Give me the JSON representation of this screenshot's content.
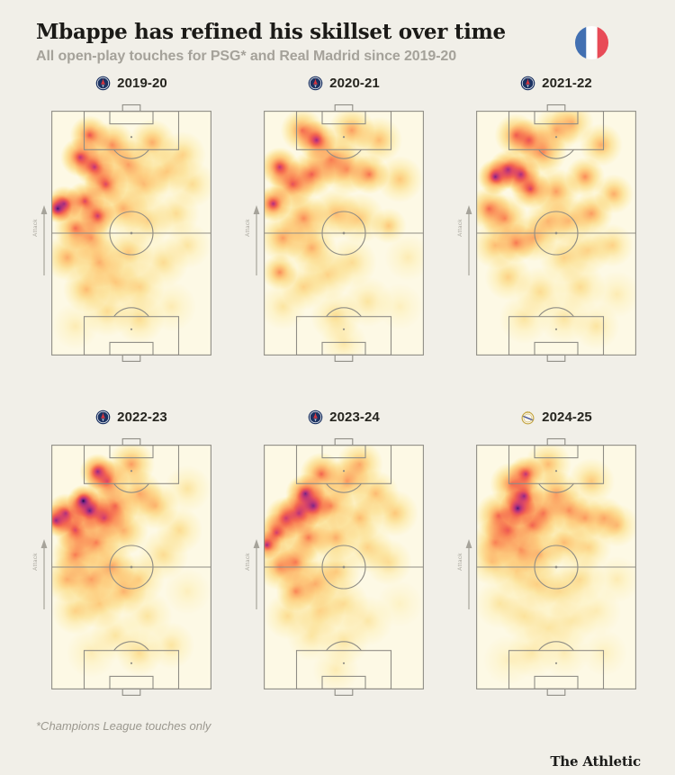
{
  "header": {
    "title": "Mbappe has refined his skillset over time",
    "subtitle": "All open-play touches for PSG* and Real Madrid since 2019-20"
  },
  "footer": {
    "note": "*Champions League touches only",
    "brand": "The Athletic"
  },
  "pitch": {
    "attack_label": "Attack",
    "attack_direction": "up"
  },
  "theme": {
    "page_bg": "#f1efe8",
    "pitch_bg": "#fdf9e4",
    "line": "#8f8d85",
    "title": "#1b1a17",
    "subtitle": "#a5a29a",
    "muted": "#9b988f",
    "psg_navy": "#1b3262",
    "psg_red": "#d8363f",
    "rm_gold": "#c2a23c",
    "rm_white": "#faf6ea",
    "rm_blue": "#3b4da0",
    "flag_blue": "#4270b2",
    "flag_red": "#e84b57"
  },
  "colormap": [
    [
      0.0,
      253,
      249,
      229
    ],
    [
      0.09,
      253,
      243,
      201
    ],
    [
      0.2,
      252,
      229,
      161
    ],
    [
      0.32,
      253,
      206,
      129
    ],
    [
      0.44,
      252,
      176,
      108
    ],
    [
      0.55,
      250,
      140,
      89
    ],
    [
      0.65,
      242,
      100,
      80
    ],
    [
      0.74,
      221,
      72,
      101
    ],
    [
      0.83,
      182,
      52,
      121
    ],
    [
      0.9,
      133,
      40,
      130
    ],
    [
      0.95,
      83,
      27,
      111
    ],
    [
      0.98,
      43,
      15,
      76
    ],
    [
      1.0,
      17,
      8,
      38
    ]
  ],
  "chart_data": {
    "type": "heatmap",
    "title": "Mbappe has refined his skillset over time",
    "subtitle": "All open-play touches for PSG* and Real Madrid since 2019-20",
    "note": "*Champions League touches only",
    "layout": {
      "rows": 2,
      "cols": 3,
      "attack_direction": "up",
      "grid": false
    },
    "units": {
      "x": "% of pitch width from left touchline",
      "y": "% of pitch length from attacking goal line",
      "v": "relative touch density 0-1",
      "r": "kernel radius px"
    },
    "panels": [
      {
        "season": "2019-20",
        "club": "PSG",
        "points": [
          [
            24,
            10,
            0.7,
            22
          ],
          [
            18,
            19,
            0.8,
            22
          ],
          [
            27,
            23,
            0.8,
            22
          ],
          [
            34,
            30,
            0.75,
            24
          ],
          [
            4,
            40,
            0.95,
            16
          ],
          [
            8,
            38,
            0.8,
            20
          ],
          [
            21,
            37,
            0.75,
            22
          ],
          [
            29,
            43,
            0.8,
            20
          ],
          [
            15,
            48,
            0.6,
            24
          ],
          [
            25,
            52,
            0.5,
            26
          ],
          [
            38,
            14,
            0.55,
            26
          ],
          [
            48,
            22,
            0.5,
            28
          ],
          [
            63,
            13,
            0.45,
            26
          ],
          [
            58,
            30,
            0.4,
            28
          ],
          [
            72,
            25,
            0.35,
            26
          ],
          [
            82,
            18,
            0.3,
            26
          ],
          [
            45,
            40,
            0.45,
            28
          ],
          [
            60,
            45,
            0.3,
            28
          ],
          [
            78,
            42,
            0.25,
            26
          ],
          [
            10,
            60,
            0.45,
            26
          ],
          [
            30,
            62,
            0.45,
            28
          ],
          [
            48,
            58,
            0.35,
            28
          ],
          [
            22,
            73,
            0.4,
            26
          ],
          [
            40,
            70,
            0.35,
            26
          ],
          [
            55,
            72,
            0.3,
            28
          ],
          [
            35,
            82,
            0.25,
            28
          ],
          [
            55,
            85,
            0.25,
            28
          ],
          [
            70,
            62,
            0.25,
            28
          ],
          [
            75,
            80,
            0.15,
            28
          ],
          [
            15,
            88,
            0.15,
            26
          ],
          [
            85,
            55,
            0.2,
            26
          ],
          [
            88,
            30,
            0.25,
            26
          ]
        ]
      },
      {
        "season": "2020-21",
        "club": "PSG",
        "points": [
          [
            33,
            12,
            0.85,
            22
          ],
          [
            24,
            8,
            0.6,
            24
          ],
          [
            10,
            23,
            0.8,
            22
          ],
          [
            6,
            38,
            0.85,
            20
          ],
          [
            18,
            30,
            0.7,
            26
          ],
          [
            30,
            26,
            0.65,
            26
          ],
          [
            42,
            20,
            0.55,
            28
          ],
          [
            52,
            24,
            0.5,
            28
          ],
          [
            66,
            26,
            0.6,
            22
          ],
          [
            55,
            8,
            0.5,
            26
          ],
          [
            72,
            12,
            0.4,
            26
          ],
          [
            85,
            28,
            0.35,
            26
          ],
          [
            25,
            44,
            0.55,
            28
          ],
          [
            12,
            52,
            0.5,
            26
          ],
          [
            10,
            66,
            0.55,
            20
          ],
          [
            30,
            56,
            0.45,
            28
          ],
          [
            45,
            42,
            0.4,
            28
          ],
          [
            60,
            44,
            0.35,
            28
          ],
          [
            78,
            47,
            0.35,
            20
          ],
          [
            40,
            67,
            0.3,
            28
          ],
          [
            55,
            62,
            0.25,
            28
          ],
          [
            25,
            72,
            0.3,
            26
          ],
          [
            45,
            84,
            0.25,
            28
          ],
          [
            65,
            78,
            0.2,
            28
          ],
          [
            12,
            80,
            0.2,
            26
          ],
          [
            85,
            80,
            0.12,
            26
          ],
          [
            50,
            95,
            0.18,
            26
          ],
          [
            90,
            60,
            0.15,
            26
          ]
        ]
      },
      {
        "season": "2021-22",
        "club": "PSG",
        "points": [
          [
            12,
            27,
            0.9,
            20
          ],
          [
            20,
            24,
            0.8,
            22
          ],
          [
            28,
            26,
            0.8,
            22
          ],
          [
            34,
            32,
            0.75,
            22
          ],
          [
            25,
            10,
            0.6,
            24
          ],
          [
            33,
            12,
            0.6,
            24
          ],
          [
            42,
            17,
            0.55,
            26
          ],
          [
            8,
            40,
            0.6,
            24
          ],
          [
            18,
            44,
            0.55,
            26
          ],
          [
            50,
            33,
            0.5,
            26
          ],
          [
            68,
            27,
            0.55,
            22
          ],
          [
            78,
            14,
            0.45,
            24
          ],
          [
            86,
            34,
            0.45,
            22
          ],
          [
            72,
            42,
            0.5,
            24
          ],
          [
            58,
            45,
            0.4,
            26
          ],
          [
            45,
            45,
            0.4,
            26
          ],
          [
            25,
            54,
            0.55,
            22
          ],
          [
            36,
            52,
            0.45,
            26
          ],
          [
            12,
            55,
            0.4,
            26
          ],
          [
            55,
            60,
            0.3,
            28
          ],
          [
            70,
            57,
            0.3,
            26
          ],
          [
            85,
            55,
            0.3,
            24
          ],
          [
            20,
            68,
            0.3,
            26
          ],
          [
            40,
            74,
            0.25,
            28
          ],
          [
            65,
            72,
            0.25,
            28
          ],
          [
            30,
            85,
            0.2,
            28
          ],
          [
            55,
            85,
            0.2,
            28
          ],
          [
            75,
            88,
            0.2,
            26
          ],
          [
            88,
            75,
            0.15,
            26
          ],
          [
            50,
            8,
            0.45,
            26
          ],
          [
            60,
            5,
            0.4,
            24
          ]
        ]
      },
      {
        "season": "2022-23",
        "club": "PSG",
        "points": [
          [
            20,
            23,
            1.0,
            18
          ],
          [
            24,
            27,
            0.9,
            22
          ],
          [
            29,
            11,
            0.85,
            20
          ],
          [
            35,
            15,
            0.7,
            24
          ],
          [
            3,
            31,
            0.85,
            18
          ],
          [
            9,
            28,
            0.8,
            22
          ],
          [
            15,
            35,
            0.75,
            24
          ],
          [
            33,
            30,
            0.7,
            24
          ],
          [
            40,
            25,
            0.6,
            26
          ],
          [
            15,
            45,
            0.6,
            26
          ],
          [
            28,
            40,
            0.6,
            26
          ],
          [
            50,
            8,
            0.5,
            26
          ],
          [
            55,
            20,
            0.45,
            26
          ],
          [
            65,
            25,
            0.4,
            26
          ],
          [
            45,
            35,
            0.45,
            28
          ],
          [
            38,
            50,
            0.5,
            26
          ],
          [
            25,
            55,
            0.5,
            26
          ],
          [
            10,
            55,
            0.45,
            26
          ],
          [
            45,
            60,
            0.4,
            26
          ],
          [
            30,
            65,
            0.35,
            28
          ],
          [
            55,
            55,
            0.3,
            28
          ],
          [
            15,
            68,
            0.3,
            26
          ],
          [
            60,
            70,
            0.2,
            28
          ],
          [
            40,
            78,
            0.2,
            28
          ],
          [
            70,
            45,
            0.25,
            28
          ],
          [
            80,
            35,
            0.25,
            26
          ],
          [
            85,
            18,
            0.2,
            26
          ],
          [
            55,
            85,
            0.25,
            26
          ],
          [
            75,
            82,
            0.2,
            26
          ],
          [
            25,
            85,
            0.15,
            28
          ],
          [
            85,
            60,
            0.12,
            26
          ]
        ]
      },
      {
        "season": "2023-24",
        "club": "PSG",
        "points": [
          [
            26,
            20,
            0.9,
            22
          ],
          [
            31,
            25,
            0.85,
            22
          ],
          [
            22,
            28,
            0.75,
            24
          ],
          [
            36,
            12,
            0.65,
            24
          ],
          [
            14,
            30,
            0.7,
            24
          ],
          [
            8,
            36,
            0.75,
            22
          ],
          [
            2,
            41,
            0.85,
            16
          ],
          [
            28,
            38,
            0.6,
            26
          ],
          [
            42,
            25,
            0.55,
            26
          ],
          [
            52,
            15,
            0.5,
            26
          ],
          [
            45,
            38,
            0.45,
            26
          ],
          [
            20,
            48,
            0.55,
            26
          ],
          [
            10,
            50,
            0.5,
            26
          ],
          [
            20,
            60,
            0.55,
            22
          ],
          [
            32,
            57,
            0.45,
            26
          ],
          [
            45,
            52,
            0.35,
            28
          ],
          [
            60,
            30,
            0.4,
            26
          ],
          [
            70,
            20,
            0.4,
            26
          ],
          [
            82,
            28,
            0.35,
            26
          ],
          [
            65,
            42,
            0.3,
            28
          ],
          [
            78,
            48,
            0.25,
            26
          ],
          [
            35,
            68,
            0.3,
            28
          ],
          [
            50,
            65,
            0.25,
            28
          ],
          [
            15,
            70,
            0.25,
            26
          ],
          [
            30,
            78,
            0.2,
            28
          ],
          [
            50,
            80,
            0.2,
            28
          ],
          [
            65,
            72,
            0.18,
            28
          ],
          [
            45,
            92,
            0.15,
            26
          ],
          [
            85,
            65,
            0.1,
            26
          ],
          [
            60,
            8,
            0.45,
            26
          ]
        ]
      },
      {
        "season": "2024-25",
        "club": "Real Madrid",
        "points": [
          [
            26,
            26,
            0.95,
            20
          ],
          [
            30,
            21,
            0.85,
            22
          ],
          [
            31,
            12,
            0.8,
            20
          ],
          [
            22,
            16,
            0.6,
            24
          ],
          [
            14,
            29,
            0.6,
            26
          ],
          [
            20,
            35,
            0.6,
            26
          ],
          [
            35,
            33,
            0.6,
            26
          ],
          [
            42,
            28,
            0.55,
            26
          ],
          [
            12,
            40,
            0.5,
            26
          ],
          [
            28,
            43,
            0.5,
            26
          ],
          [
            50,
            20,
            0.5,
            26
          ],
          [
            45,
            8,
            0.4,
            26
          ],
          [
            58,
            27,
            0.5,
            24
          ],
          [
            68,
            30,
            0.45,
            24
          ],
          [
            80,
            30,
            0.4,
            24
          ],
          [
            88,
            33,
            0.35,
            24
          ],
          [
            72,
            15,
            0.35,
            26
          ],
          [
            55,
            40,
            0.4,
            26
          ],
          [
            70,
            42,
            0.3,
            26
          ],
          [
            40,
            45,
            0.4,
            26
          ],
          [
            10,
            48,
            0.35,
            26
          ],
          [
            25,
            52,
            0.3,
            28
          ],
          [
            38,
            57,
            0.3,
            28
          ],
          [
            52,
            60,
            0.25,
            28
          ],
          [
            65,
            55,
            0.25,
            28
          ],
          [
            15,
            65,
            0.2,
            28
          ],
          [
            30,
            70,
            0.22,
            28
          ],
          [
            45,
            75,
            0.2,
            28
          ],
          [
            60,
            72,
            0.18,
            28
          ],
          [
            75,
            68,
            0.15,
            28
          ],
          [
            35,
            85,
            0.18,
            28
          ],
          [
            55,
            85,
            0.15,
            28
          ],
          [
            20,
            88,
            0.12,
            28
          ],
          [
            80,
            85,
            0.12,
            26
          ],
          [
            88,
            55,
            0.15,
            26
          ]
        ]
      }
    ]
  }
}
